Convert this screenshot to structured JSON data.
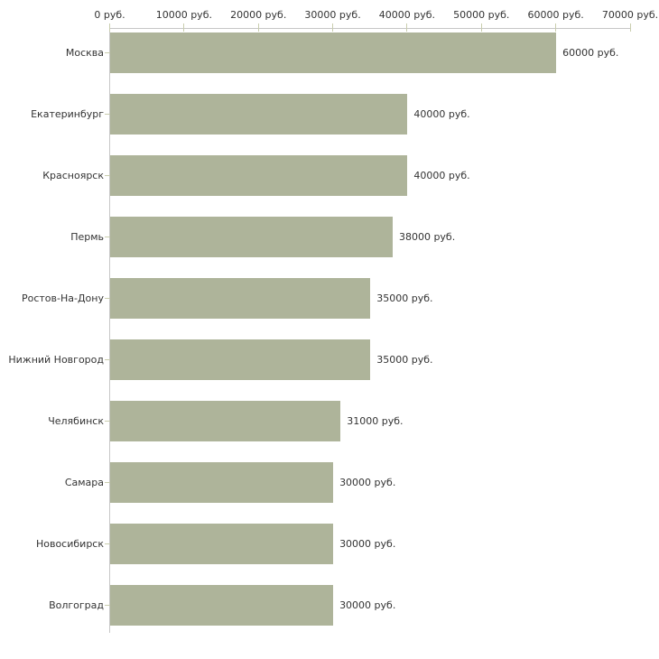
{
  "chart_data": {
    "type": "bar",
    "orientation": "horizontal",
    "title": "",
    "xlabel": "",
    "ylabel": "",
    "unit": "руб.",
    "categories": [
      "Москва",
      "Екатеринбург",
      "Красноярск",
      "Пермь",
      "Ростов-На-Дону",
      "Нижний Новгород",
      "Челябинск",
      "Самара",
      "Новосибирск",
      "Волгоград"
    ],
    "values": [
      60000,
      40000,
      40000,
      38000,
      35000,
      35000,
      31000,
      30000,
      30000,
      30000
    ],
    "value_labels": [
      "60000 руб.",
      "40000 руб.",
      "40000 руб.",
      "38000 руб.",
      "35000 руб.",
      "35000 руб.",
      "31000 руб.",
      "30000 руб.",
      "30000 руб.",
      "30000 руб."
    ],
    "x_tick_values": [
      0,
      10000,
      20000,
      30000,
      40000,
      50000,
      60000,
      70000
    ],
    "x_tick_labels": [
      "0 руб.",
      "10000 руб.",
      "20000 руб.",
      "30000 руб.",
      "40000 руб.",
      "50000 руб.",
      "60000 руб.",
      "70000 руб."
    ],
    "xlim": [
      0,
      70000
    ],
    "grid": false,
    "legend": "none",
    "bar_color": "#aeb49a",
    "axis_color": "#c6c6c6",
    "tick_color": "#c9cdae",
    "text_color": "#333333"
  }
}
